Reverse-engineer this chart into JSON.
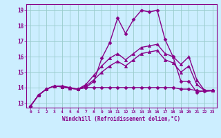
{
  "xlabel": "Windchill (Refroidissement éolien,°C)",
  "bg_color": "#cceeff",
  "line_color": "#880088",
  "grid_color": "#99cccc",
  "xlim": [
    -0.5,
    23.5
  ],
  "ylim": [
    12.7,
    19.4
  ],
  "yticks": [
    13,
    14,
    15,
    16,
    17,
    18,
    19
  ],
  "xticks": [
    0,
    1,
    2,
    3,
    4,
    5,
    6,
    7,
    8,
    9,
    10,
    11,
    12,
    13,
    14,
    15,
    16,
    17,
    18,
    19,
    20,
    21,
    22,
    23
  ],
  "series": [
    {
      "x": [
        0,
        1,
        2,
        3,
        4,
        5,
        6,
        7,
        8,
        9,
        10,
        11,
        12,
        13,
        14,
        15,
        16,
        17,
        18,
        19,
        20,
        21,
        22,
        23
      ],
      "y": [
        12.8,
        13.5,
        13.9,
        14.1,
        14.1,
        14.0,
        13.9,
        14.0,
        14.4,
        15.9,
        16.9,
        18.5,
        17.5,
        18.4,
        19.0,
        18.9,
        19.0,
        17.1,
        16.0,
        14.4,
        14.4,
        13.7,
        13.8,
        13.8
      ],
      "marker": "D",
      "marker_size": 2.5,
      "linewidth": 1.0
    },
    {
      "x": [
        0,
        1,
        2,
        3,
        4,
        5,
        6,
        7,
        8,
        9,
        10,
        11,
        12,
        13,
        14,
        15,
        16,
        17,
        18,
        19,
        20,
        21,
        22,
        23
      ],
      "y": [
        12.8,
        13.5,
        13.9,
        14.1,
        14.05,
        13.95,
        13.9,
        14.0,
        14.0,
        14.0,
        14.0,
        14.0,
        14.0,
        14.0,
        14.0,
        14.0,
        14.0,
        14.0,
        14.0,
        13.9,
        13.9,
        13.8,
        13.75,
        13.8
      ],
      "marker": "D",
      "marker_size": 2.5,
      "linewidth": 1.0
    },
    {
      "x": [
        0,
        1,
        2,
        3,
        4,
        5,
        6,
        7,
        8,
        9,
        10,
        11,
        12,
        13,
        14,
        15,
        16,
        17,
        18,
        19,
        20,
        21,
        22,
        23
      ],
      "y": [
        12.8,
        13.5,
        13.9,
        14.1,
        14.05,
        13.95,
        13.9,
        14.2,
        14.8,
        15.4,
        15.9,
        16.2,
        15.8,
        16.2,
        16.6,
        16.7,
        16.8,
        16.2,
        16.0,
        15.5,
        16.0,
        14.5,
        13.8,
        13.8
      ],
      "marker": "^",
      "marker_size": 3,
      "linewidth": 1.0
    },
    {
      "x": [
        0,
        1,
        2,
        3,
        4,
        5,
        6,
        7,
        8,
        9,
        10,
        11,
        12,
        13,
        14,
        15,
        16,
        17,
        18,
        19,
        20,
        21,
        22,
        23
      ],
      "y": [
        12.8,
        13.5,
        13.9,
        14.1,
        14.05,
        13.95,
        13.9,
        14.1,
        14.5,
        15.0,
        15.4,
        15.7,
        15.4,
        15.8,
        16.2,
        16.3,
        16.4,
        15.8,
        15.6,
        15.0,
        15.4,
        14.2,
        13.8,
        13.8
      ],
      "marker": "^",
      "marker_size": 3,
      "linewidth": 1.0
    }
  ]
}
